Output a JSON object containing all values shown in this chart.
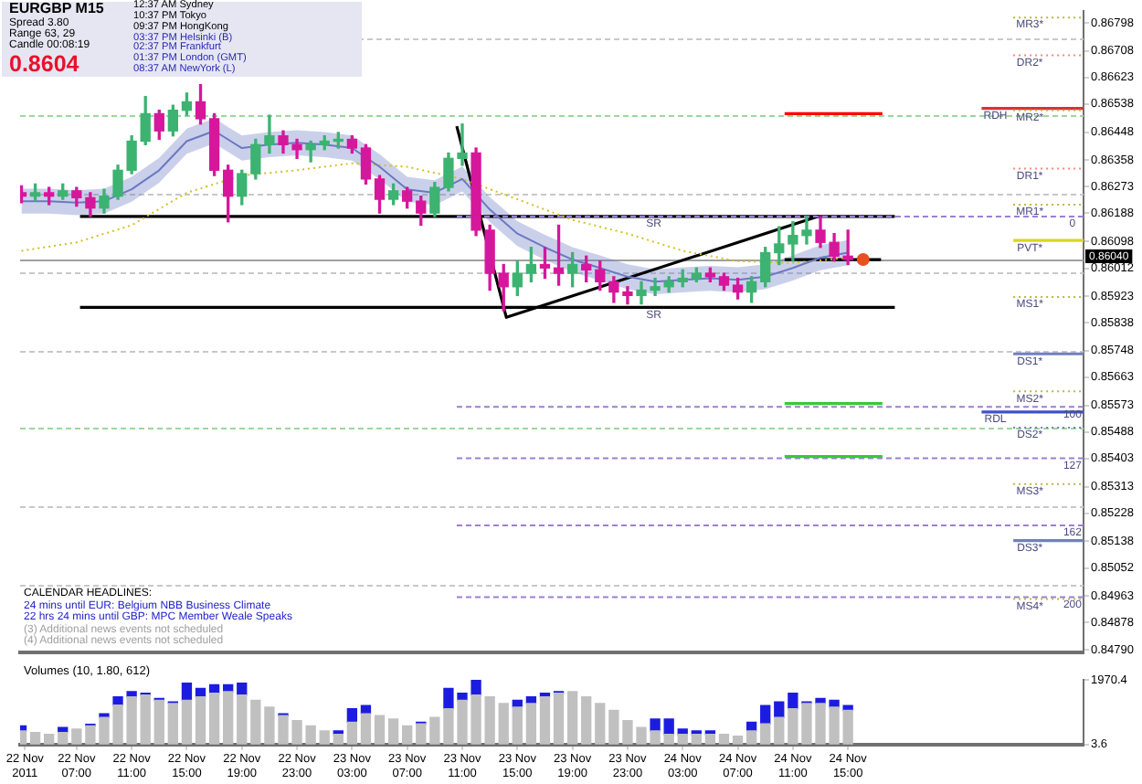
{
  "chart_data": [
    {
      "type": "candlestick",
      "title": "EURGBP M15",
      "x": [
        "2011-11-22T03:00",
        "2011-11-22T04:00",
        "2011-11-22T05:00",
        "2011-11-22T06:00",
        "2011-11-22T07:00",
        "2011-11-22T08:00",
        "2011-11-22T09:00",
        "2011-11-22T10:00",
        "2011-11-22T11:00",
        "2011-11-22T12:00",
        "2011-11-22T13:00",
        "2011-11-22T14:00",
        "2011-11-22T15:00",
        "2011-11-22T16:00",
        "2011-11-22T17:00",
        "2011-11-22T18:00",
        "2011-11-22T19:00",
        "2011-11-22T20:00",
        "2011-11-22T21:00",
        "2011-11-22T22:00",
        "2011-11-22T23:00",
        "2011-11-23T00:00",
        "2011-11-23T01:00",
        "2011-11-23T02:00",
        "2011-11-23T03:00",
        "2011-11-23T04:00",
        "2011-11-23T05:00",
        "2011-11-23T06:00",
        "2011-11-23T07:00",
        "2011-11-23T08:00",
        "2011-11-23T09:00",
        "2011-11-23T10:00",
        "2011-11-23T11:00",
        "2011-11-23T12:00",
        "2011-11-23T13:00",
        "2011-11-23T14:00",
        "2011-11-23T15:00",
        "2011-11-23T16:00",
        "2011-11-23T17:00",
        "2011-11-23T18:00",
        "2011-11-23T19:00",
        "2011-11-23T20:00",
        "2011-11-23T21:00",
        "2011-11-23T22:00",
        "2011-11-23T23:00",
        "2011-11-24T00:00",
        "2011-11-24T01:00",
        "2011-11-24T02:00",
        "2011-11-24T03:00",
        "2011-11-24T04:00",
        "2011-11-24T05:00",
        "2011-11-24T06:00",
        "2011-11-24T07:00",
        "2011-11-24T08:00",
        "2011-11-24T09:00",
        "2011-11-24T10:00",
        "2011-11-24T11:00",
        "2011-11-24T12:00",
        "2011-11-24T13:00",
        "2011-11-24T14:00",
        "2011-11-24T15:00"
      ],
      "ohlc": [
        [
          0.86254,
          0.86276,
          0.86222,
          0.86243
        ],
        [
          0.86243,
          0.86282,
          0.86227,
          0.86254
        ],
        [
          0.86254,
          0.86271,
          0.86216,
          0.86243
        ],
        [
          0.86243,
          0.86282,
          0.86233,
          0.8626
        ],
        [
          0.8626,
          0.86271,
          0.86211,
          0.86238
        ],
        [
          0.86238,
          0.86254,
          0.86178,
          0.86205
        ],
        [
          0.86205,
          0.86265,
          0.86189,
          0.86243
        ],
        [
          0.86243,
          0.86342,
          0.86233,
          0.86326
        ],
        [
          0.86326,
          0.86436,
          0.86315,
          0.86419
        ],
        [
          0.86419,
          0.86562,
          0.86408,
          0.86507
        ],
        [
          0.86507,
          0.86518,
          0.86425,
          0.86452
        ],
        [
          0.86452,
          0.86534,
          0.86436,
          0.86518
        ],
        [
          0.86518,
          0.86573,
          0.86502,
          0.86545
        ],
        [
          0.86545,
          0.866,
          0.86474,
          0.86491
        ],
        [
          0.86491,
          0.86507,
          0.86309,
          0.86326
        ],
        [
          0.86326,
          0.86342,
          0.86161,
          0.86243
        ],
        [
          0.86243,
          0.86326,
          0.86216,
          0.86315
        ],
        [
          0.86315,
          0.86425,
          0.86298,
          0.86408
        ],
        [
          0.86408,
          0.86502,
          0.86381,
          0.86436
        ],
        [
          0.86436,
          0.86452,
          0.86381,
          0.86408
        ],
        [
          0.86408,
          0.86425,
          0.86364,
          0.86392
        ],
        [
          0.86392,
          0.86419,
          0.86353,
          0.86408
        ],
        [
          0.86408,
          0.86436,
          0.86392,
          0.86419
        ],
        [
          0.86419,
          0.86447,
          0.86397,
          0.86425
        ],
        [
          0.86425,
          0.86436,
          0.86381,
          0.86397
        ],
        [
          0.86397,
          0.86408,
          0.86282,
          0.86298
        ],
        [
          0.86298,
          0.86309,
          0.86189,
          0.86233
        ],
        [
          0.86233,
          0.86282,
          0.86216,
          0.8626
        ],
        [
          0.8626,
          0.86271,
          0.86205,
          0.86227
        ],
        [
          0.86227,
          0.86243,
          0.8615,
          0.86189
        ],
        [
          0.86189,
          0.86287,
          0.86178,
          0.86271
        ],
        [
          0.86271,
          0.86381,
          0.8626,
          0.86364
        ],
        [
          0.86364,
          0.86474,
          0.86342,
          0.86381
        ],
        [
          0.86381,
          0.86397,
          0.86117,
          0.86134
        ],
        [
          0.86134,
          0.8615,
          0.85942,
          0.85996
        ],
        [
          0.85996,
          0.86024,
          0.85876,
          0.85953
        ],
        [
          0.85953,
          0.86035,
          0.85925,
          0.85996
        ],
        [
          0.85996,
          0.86079,
          0.85969,
          0.86024
        ],
        [
          0.86024,
          0.86079,
          0.8598,
          0.86013
        ],
        [
          0.86013,
          0.8615,
          0.85958,
          0.85996
        ],
        [
          0.85996,
          0.86062,
          0.85953,
          0.86024
        ],
        [
          0.86024,
          0.86051,
          0.85969,
          0.86007
        ],
        [
          0.86007,
          0.86035,
          0.85942,
          0.85969
        ],
        [
          0.85969,
          0.85985,
          0.85903,
          0.85936
        ],
        [
          0.85936,
          0.85953,
          0.85898,
          0.85925
        ],
        [
          0.85925,
          0.85969,
          0.85898,
          0.85942
        ],
        [
          0.85942,
          0.8598,
          0.85925,
          0.85953
        ],
        [
          0.85953,
          0.85985,
          0.85936,
          0.85969
        ],
        [
          0.85969,
          0.86007,
          0.85953,
          0.8598
        ],
        [
          0.8598,
          0.86013,
          0.85969,
          0.85996
        ],
        [
          0.85996,
          0.86013,
          0.85969,
          0.85985
        ],
        [
          0.85985,
          0.85996,
          0.85942,
          0.85958
        ],
        [
          0.85958,
          0.8598,
          0.85914,
          0.85936
        ],
        [
          0.85936,
          0.85985,
          0.85903,
          0.85969
        ],
        [
          0.85969,
          0.86079,
          0.85953,
          0.86062
        ],
        [
          0.86062,
          0.86145,
          0.86024,
          0.8609
        ],
        [
          0.8609,
          0.86161,
          0.86035,
          0.86117
        ],
        [
          0.86117,
          0.86178,
          0.8609,
          0.86134
        ],
        [
          0.86134,
          0.86178,
          0.86079,
          0.86095
        ],
        [
          0.86095,
          0.86123,
          0.86035,
          0.86051
        ],
        [
          0.86051,
          0.86134,
          0.86024,
          0.8604
        ]
      ],
      "colors": [
        "#d6179c",
        "#3cb371",
        "#d6179c",
        "#3cb371",
        "#d6179c",
        "#d6179c",
        "#3cb371",
        "#3cb371",
        "#3cb371",
        "#3cb371",
        "#d6179c",
        "#3cb371",
        "#3cb371",
        "#d6179c",
        "#d6179c",
        "#d6179c",
        "#3cb371",
        "#3cb371",
        "#3cb371",
        "#d6179c",
        "#d6179c",
        "#3cb371",
        "#3cb371",
        "#3cb371",
        "#d6179c",
        "#d6179c",
        "#d6179c",
        "#3cb371",
        "#d6179c",
        "#d6179c",
        "#3cb371",
        "#3cb371",
        "#3cb371",
        "#d6179c",
        "#d6179c",
        "#d6179c",
        "#3cb371",
        "#3cb371",
        "#d6179c",
        "#d6179c",
        "#3cb371",
        "#d6179c",
        "#d6179c",
        "#d6179c",
        "#d6179c",
        "#3cb371",
        "#3cb371",
        "#3cb371",
        "#3cb371",
        "#3cb371",
        "#d6179c",
        "#d6179c",
        "#d6179c",
        "#3cb371",
        "#3cb371",
        "#3cb371",
        "#3cb371",
        "#3cb371",
        "#d6179c",
        "#d6179c",
        "#d6179c"
      ],
      "series": [
        {
          "type": "line",
          "color": "#6b78c4",
          "x": [
            "2011-11-22T03:00",
            "2011-11-22T05:00",
            "2011-11-22T07:00",
            "2011-11-22T09:00",
            "2011-11-22T11:00",
            "2011-11-22T13:00",
            "2011-11-22T15:00",
            "2011-11-22T17:00",
            "2011-11-22T19:00",
            "2011-11-22T21:00",
            "2011-11-22T23:00",
            "2011-11-23T01:00",
            "2011-11-23T03:00",
            "2011-11-23T05:00",
            "2011-11-23T07:00",
            "2011-11-23T09:00",
            "2011-11-23T11:00",
            "2011-11-23T13:00",
            "2011-11-23T15:00",
            "2011-11-23T17:00",
            "2011-11-23T19:00",
            "2011-11-23T21:00",
            "2011-11-23T23:00",
            "2011-11-24T01:00",
            "2011-11-24T03:00",
            "2011-11-24T05:00",
            "2011-11-24T07:00",
            "2011-11-24T09:00",
            "2011-11-24T11:00",
            "2011-11-24T13:00",
            "2011-11-24T15:00"
          ],
          "values": [
            0.86227,
            0.86227,
            0.86222,
            0.86227,
            0.86265,
            0.86326,
            0.86419,
            0.86452,
            0.86397,
            0.86408,
            0.86414,
            0.86408,
            0.86397,
            0.86337,
            0.86265,
            0.86254,
            0.86298,
            0.862,
            0.86123,
            0.86079,
            0.8604,
            0.86013,
            0.85985,
            0.85969,
            0.85975,
            0.8598,
            0.85975,
            0.85985,
            0.86013,
            0.86046,
            0.86062
          ],
          "lower": [
            0.86187,
            0.86187,
            0.86182,
            0.86187,
            0.86225,
            0.86286,
            0.86379,
            0.86412,
            0.86357,
            0.86368,
            0.86374,
            0.86368,
            0.86357,
            0.86297,
            0.86225,
            0.86214,
            0.86258,
            0.8616,
            0.86083,
            0.86039,
            0.86,
            0.85973,
            0.85945,
            0.85929,
            0.85935,
            0.8594,
            0.85935,
            0.85945,
            0.85973,
            0.86006,
            0.86022
          ],
          "upper": [
            0.86267,
            0.86267,
            0.86262,
            0.86267,
            0.86305,
            0.86366,
            0.86459,
            0.86492,
            0.86437,
            0.86448,
            0.86454,
            0.86448,
            0.86437,
            0.86377,
            0.86305,
            0.86294,
            0.86338,
            0.8624,
            0.86163,
            0.86119,
            0.8608,
            0.86053,
            0.86025,
            0.86009,
            0.86015,
            0.8602,
            0.86015,
            0.86025,
            0.86053,
            0.86086,
            0.86102
          ]
        },
        {
          "type": "line",
          "color": "#d4c020",
          "line_style": "dotted",
          "x": [
            "2011-11-22T03:00",
            "2011-11-22T07:00",
            "2011-11-22T11:00",
            "2011-11-22T15:00",
            "2011-11-22T19:00",
            "2011-11-22T23:00",
            "2011-11-23T03:00",
            "2011-11-23T07:00",
            "2011-11-23T11:00",
            "2011-11-23T15:00",
            "2011-11-23T19:00",
            "2011-11-23T23:00",
            "2011-11-24T03:00",
            "2011-11-24T07:00",
            "2011-11-24T11:00",
            "2011-11-24T15:00"
          ],
          "values": [
            0.86068,
            0.86095,
            0.8615,
            0.86254,
            0.86309,
            0.86326,
            0.86348,
            0.86337,
            0.86298,
            0.86233,
            0.86167,
            0.86123,
            0.86068,
            0.86035,
            0.86029,
            0.86046
          ]
        },
        {
          "type": "line",
          "color": "#9b7fd4",
          "line_style": "dashed",
          "x": [
            "2011-11-23T10:36",
            "2011-11-25T08:06"
          ],
          "values": [
            0.86178,
            0.86178
          ]
        },
        {
          "type": "line",
          "color": "#9b7fd4",
          "line_style": "dashed",
          "x": [
            "2011-11-23T10:36",
            "2011-11-25T08:06"
          ],
          "values": [
            0.85568,
            0.85568
          ]
        },
        {
          "type": "line",
          "color": "#9b7fd4",
          "line_style": "dashed",
          "x": [
            "2011-11-23T10:36",
            "2011-11-25T08:06"
          ],
          "values": [
            0.85404,
            0.85404
          ]
        },
        {
          "type": "line",
          "color": "#9b7fd4",
          "line_style": "dashed",
          "x": [
            "2011-11-23T10:36",
            "2011-11-25T08:06"
          ],
          "values": [
            0.85189,
            0.85189
          ]
        },
        {
          "type": "line",
          "color": "#9b7fd4",
          "line_style": "dashed",
          "x": [
            "2011-11-23T10:36",
            "2011-11-25T08:06"
          ],
          "values": [
            0.84959,
            0.84959
          ]
        },
        {
          "type": "line",
          "color": "#000000",
          "x": [
            "2011-11-23T10:36",
            "2011-11-23T14:12",
            "2011-11-24T12:54"
          ],
          "values": [
            0.86467,
            0.85855,
            0.86179
          ]
        },
        {
          "type": "line",
          "color": "#000000",
          "x": [
            "2011-11-22T07:15",
            "2011-11-24T18:24"
          ],
          "values": [
            0.86178,
            0.86178
          ]
        },
        {
          "type": "line",
          "color": "#000000",
          "x": [
            "2011-11-22T07:15",
            "2011-11-24T18:24"
          ],
          "values": [
            0.85887,
            0.85887
          ]
        },
        {
          "type": "line",
          "color": "#000000",
          "x": [
            "2011-11-24T10:24",
            "2011-11-24T17:24"
          ],
          "values": [
            0.8604,
            0.8604
          ]
        },
        {
          "type": "line",
          "color": "#ff0000",
          "x": [
            "2011-11-24T10:24",
            "2011-11-24T17:30"
          ],
          "values": [
            0.86507,
            0.86507
          ]
        },
        {
          "type": "line",
          "color": "#33cc33",
          "x": [
            "2011-11-24T10:24",
            "2011-11-24T17:30"
          ],
          "values": [
            0.85579,
            0.85579
          ]
        },
        {
          "type": "line",
          "color": "#33cc33",
          "x": [
            "2011-11-24T10:24",
            "2011-11-24T17:30"
          ],
          "values": [
            0.85409,
            0.85409
          ]
        },
        {
          "type": "line",
          "color": "#b8b840",
          "line_style": "dotted",
          "x": [
            "2011-11-25T03:00",
            "2011-11-25T08:06"
          ],
          "values": [
            0.86815,
            0.86815
          ]
        },
        {
          "type": "line",
          "color": "#f08878",
          "line_style": "dotted",
          "x": [
            "2011-11-25T03:00",
            "2011-11-25T08:06"
          ],
          "values": [
            0.86694,
            0.86694
          ]
        },
        {
          "type": "line",
          "color": "#b8b840",
          "line_style": "dotted",
          "x": [
            "2011-11-25T03:00",
            "2011-11-25T08:06"
          ],
          "values": [
            0.86518,
            0.86518
          ]
        },
        {
          "type": "line",
          "color": "#f08878",
          "line_style": "dotted",
          "x": [
            "2011-11-25T03:00",
            "2011-11-25T08:06"
          ],
          "values": [
            0.86331,
            0.86331
          ]
        },
        {
          "type": "line",
          "color": "#b8b840",
          "line_style": "dotted",
          "x": [
            "2011-11-25T03:00",
            "2011-11-25T08:06"
          ],
          "values": [
            0.86216,
            0.86216
          ]
        },
        {
          "type": "line",
          "color": "#d8d820",
          "x": [
            "2011-11-25T03:00",
            "2011-11-25T08:06"
          ],
          "values": [
            0.86101,
            0.86101
          ]
        },
        {
          "type": "line",
          "color": "#b8b840",
          "line_style": "dotted",
          "x": [
            "2011-11-25T03:00",
            "2011-11-25T08:06"
          ],
          "values": [
            0.8592,
            0.8592
          ]
        },
        {
          "type": "line",
          "color": "#7080c0",
          "x": [
            "2011-11-25T03:00",
            "2011-11-25T08:06"
          ],
          "values": [
            0.85738,
            0.85738
          ]
        },
        {
          "type": "line",
          "color": "#b8b840",
          "line_style": "dotted",
          "x": [
            "2011-11-25T03:00",
            "2011-11-25T08:06"
          ],
          "values": [
            0.85618,
            0.85618
          ]
        },
        {
          "type": "line",
          "color": "#7080c0",
          "line_style": "dotted",
          "x": [
            "2011-11-25T03:00",
            "2011-11-25T08:06"
          ],
          "values": [
            0.85502,
            0.85502
          ]
        },
        {
          "type": "line",
          "color": "#b8b840",
          "line_style": "dotted",
          "x": [
            "2011-11-25T03:00",
            "2011-11-25T08:06"
          ],
          "values": [
            0.85321,
            0.85321
          ]
        },
        {
          "type": "line",
          "color": "#7080c0",
          "x": [
            "2011-11-25T03:00",
            "2011-11-25T08:06"
          ],
          "values": [
            0.8514,
            0.8514
          ]
        },
        {
          "type": "line",
          "color": "#b8b840",
          "line_style": "dotted",
          "x": [
            "2011-11-25T03:00",
            "2011-11-25T08:06"
          ],
          "values": [
            0.84953,
            0.84953
          ]
        },
        {
          "type": "line",
          "color": "#e03030",
          "x": [
            "2011-11-25T00:42",
            "2011-11-25T08:06"
          ],
          "values": [
            0.86524,
            0.86524
          ]
        },
        {
          "type": "line",
          "color": "#4050c8",
          "x": [
            "2011-11-25T00:42",
            "2011-11-25T08:06"
          ],
          "values": [
            0.85552,
            0.85552
          ]
        },
        {
          "type": "scatter",
          "color": "#e85020",
          "marker": "circle",
          "x": [
            "2011-11-24T16:06"
          ],
          "values": [
            0.8604
          ]
        }
      ],
      "ref_lines": [
        {
          "axis": "y",
          "value": 0.8675,
          "color": "#c8c8c8",
          "line_style": "dashed"
        },
        {
          "axis": "y",
          "value": 0.865,
          "color": "#9ad89a",
          "line_style": "dashed"
        },
        {
          "axis": "y",
          "value": 0.8625,
          "color": "#c8c8c8",
          "line_style": "dashed"
        },
        {
          "axis": "y",
          "value": 0.86,
          "color": "#c8c8c8",
          "line_style": "dashed"
        },
        {
          "axis": "y",
          "value": 0.8575,
          "color": "#c8c8c8",
          "line_style": "dashed"
        },
        {
          "axis": "y",
          "value": 0.855,
          "color": "#9ad89a",
          "line_style": "dashed"
        },
        {
          "axis": "y",
          "value": 0.8525,
          "color": "#c8c8c8",
          "line_style": "dashed"
        },
        {
          "axis": "y",
          "value": 0.85,
          "color": "#c8c8c8",
          "line_style": "dashed"
        },
        {
          "axis": "y",
          "value": 0.8604,
          "label": "0.86040",
          "color": "#a0a0a0"
        }
      ],
      "annotations": [
        {
          "text": "MR3*",
          "x": "2011-11-25T04:12",
          "y": 0.86815
        },
        {
          "text": "DR2*",
          "x": "2011-11-25T04:12",
          "y": 0.86694
        },
        {
          "text": "RDH",
          "x": "2011-11-25T01:42",
          "y": 0.86524
        },
        {
          "text": "MR2*",
          "x": "2011-11-25T04:12",
          "y": 0.86518
        },
        {
          "text": "DR1*",
          "x": "2011-11-25T04:12",
          "y": 0.86331
        },
        {
          "text": "MR1*",
          "x": "2011-11-25T04:12",
          "y": 0.86216
        },
        {
          "text": "PVT*",
          "x": "2011-11-25T04:12",
          "y": 0.86101
        },
        {
          "text": "MS1*",
          "x": "2011-11-25T04:12",
          "y": 0.8592
        },
        {
          "text": "DS1*",
          "x": "2011-11-25T04:12",
          "y": 0.85738
        },
        {
          "text": "MS2*",
          "x": "2011-11-25T04:12",
          "y": 0.85618
        },
        {
          "text": "RDL",
          "x": "2011-11-25T01:42",
          "y": 0.85552
        },
        {
          "text": "DS2*",
          "x": "2011-11-25T04:12",
          "y": 0.85502
        },
        {
          "text": "MS3*",
          "x": "2011-11-25T04:12",
          "y": 0.85321
        },
        {
          "text": "DS3*",
          "x": "2011-11-25T04:12",
          "y": 0.8514
        },
        {
          "text": "MS4*",
          "x": "2011-11-25T04:12",
          "y": 0.84953
        },
        {
          "text": "0",
          "x": "2011-11-25T07:18",
          "y": 0.86178
        },
        {
          "text": "100",
          "x": "2011-11-25T07:18",
          "y": 0.85568
        },
        {
          "text": "127",
          "x": "2011-11-25T07:18",
          "y": 0.85404
        },
        {
          "text": "162",
          "x": "2011-11-25T07:18",
          "y": 0.85189
        },
        {
          "text": "200",
          "x": "2011-11-25T07:18",
          "y": 0.84959
        },
        {
          "text": "SR",
          "x": "2011-11-24T00:54",
          "y": 0.86178
        },
        {
          "text": "SR",
          "x": "2011-11-24T00:54",
          "y": 0.85887
        },
        "Spread 3.80",
        "Range 63, 29",
        "Candle 00:08:19",
        "0.8604",
        "12:37 AM Sydney",
        "10:37 PM Tokyo",
        "09:37 PM HongKong",
        "03:37 PM Helsinki (B)",
        "02:37 PM Frankfurt",
        "01:37 PM London (GMT)",
        "08:37 AM NewYork (L)",
        "CALENDAR HEADLINES:",
        "24 mins until EUR: Belgium NBB Business Climate",
        "22 hrs 24 mins until GBP: MPC Member Weale Speaks",
        "(3) Additional news events not scheduled",
        "(4) Additional news events not scheduled"
      ],
      "xlim": [
        "2011-11-22T02:54",
        "2011-11-25T08:06"
      ],
      "ylim": [
        0.84782,
        0.86836
      ],
      "yticks": [
        0.86798,
        0.86708,
        0.86623,
        0.86538,
        0.86448,
        0.86358,
        0.86273,
        0.86188,
        0.86098,
        0.86012,
        0.85923,
        0.85838,
        0.85748,
        0.85663,
        0.85573,
        0.85488,
        0.85403,
        0.85313,
        0.85228,
        0.85138,
        0.85052,
        0.84963,
        0.84878,
        {
          "value": 0.8479,
          "label": "0.84790"
        }
      ],
      "tick_labels": "y"
    },
    {
      "type": "bar",
      "title": "Volumes (10, 1.80, 612)",
      "stacked": true,
      "x": [
        "2011-11-22T03:00",
        "2011-11-22T04:00",
        "2011-11-22T05:00",
        "2011-11-22T06:00",
        "2011-11-22T07:00",
        "2011-11-22T08:00",
        "2011-11-22T09:00",
        "2011-11-22T10:00",
        "2011-11-22T11:00",
        "2011-11-22T12:00",
        "2011-11-22T13:00",
        "2011-11-22T14:00",
        "2011-11-22T15:00",
        "2011-11-22T16:00",
        "2011-11-22T17:00",
        "2011-11-22T18:00",
        "2011-11-22T19:00",
        "2011-11-22T20:00",
        "2011-11-22T21:00",
        "2011-11-22T22:00",
        "2011-11-22T23:00",
        "2011-11-23T00:00",
        "2011-11-23T01:00",
        "2011-11-23T02:00",
        "2011-11-23T03:00",
        "2011-11-23T04:00",
        "2011-11-23T05:00",
        "2011-11-23T06:00",
        "2011-11-23T07:00",
        "2011-11-23T08:00",
        "2011-11-23T09:00",
        "2011-11-23T10:00",
        "2011-11-23T11:00",
        "2011-11-23T12:00",
        "2011-11-23T13:00",
        "2011-11-23T14:00",
        "2011-11-23T15:00",
        "2011-11-23T16:00",
        "2011-11-23T17:00",
        "2011-11-23T18:00",
        "2011-11-23T19:00",
        "2011-11-23T20:00",
        "2011-11-23T21:00",
        "2011-11-23T22:00",
        "2011-11-23T23:00",
        "2011-11-24T00:00",
        "2011-11-24T01:00",
        "2011-11-24T02:00",
        "2011-11-24T03:00",
        "2011-11-24T04:00",
        "2011-11-24T05:00",
        "2011-11-24T06:00",
        "2011-11-24T07:00",
        "2011-11-24T08:00",
        "2011-11-24T09:00",
        "2011-11-24T10:00",
        "2011-11-24T11:00",
        "2011-11-24T12:00",
        "2011-11-24T13:00",
        "2011-11-24T14:00",
        "2011-11-24T15:00"
      ],
      "series": [
        {
          "color": "#c0c0c0",
          "values": [
            420,
            370,
            310,
            370,
            470,
            570,
            830,
            1200,
            1450,
            1510,
            1350,
            1250,
            1350,
            1450,
            1560,
            1610,
            1510,
            1350,
            1140,
            880,
            730,
            570,
            420,
            310,
            680,
            940,
            880,
            780,
            570,
            630,
            830,
            1090,
            1350,
            1510,
            1450,
            1250,
            1140,
            1250,
            1450,
            1560,
            1610,
            1450,
            1250,
            1040,
            730,
            520,
            420,
            310,
            310,
            310,
            310,
            310,
            260,
            420,
            630,
            830,
            1090,
            1250,
            1250,
            1140,
            1040
          ]
        },
        {
          "color": "#1c1ce0",
          "values": [
            150,
            null,
            null,
            150,
            null,
            50,
            110,
            250,
            160,
            50,
            50,
            50,
            520,
            260,
            260,
            210,
            360,
            null,
            null,
            60,
            null,
            null,
            null,
            110,
            410,
            250,
            null,
            null,
            null,
            50,
            null,
            620,
            210,
            460,
            null,
            null,
            210,
            200,
            110,
            50,
            null,
            null,
            null,
            null,
            null,
            null,
            360,
            470,
            160,
            110,
            110,
            null,
            null,
            260,
            560,
            470,
            470,
            50,
            150,
            210,
            150
          ]
        }
      ],
      "xlim": [
        "2011-11-22T02:54",
        "2011-11-25T08:06"
      ],
      "xticks": [
        {
          "value": "2011-11-22T03:15",
          "label": "22 Nov 2011"
        },
        {
          "value": "2011-11-22T07:00",
          "label": "22 Nov 07:00"
        },
        {
          "value": "2011-11-22T11:00",
          "label": "22 Nov 11:00"
        },
        {
          "value": "2011-11-22T15:00",
          "label": "22 Nov 15:00"
        },
        {
          "value": "2011-11-22T19:00",
          "label": "22 Nov 19:00"
        },
        {
          "value": "2011-11-22T23:00",
          "label": "22 Nov 23:00"
        },
        {
          "value": "2011-11-23T03:00",
          "label": "23 Nov 03:00"
        },
        {
          "value": "2011-11-23T07:00",
          "label": "23 Nov 07:00"
        },
        {
          "value": "2011-11-23T11:00",
          "label": "23 Nov 11:00"
        },
        {
          "value": "2011-11-23T15:00",
          "label": "23 Nov 15:00"
        },
        {
          "value": "2011-11-23T19:00",
          "label": "23 Nov 19:00"
        },
        {
          "value": "2011-11-23T23:00",
          "label": "23 Nov 23:00"
        },
        {
          "value": "2011-11-24T03:00",
          "label": "24 Nov 03:00"
        },
        {
          "value": "2011-11-24T07:00",
          "label": "24 Nov 07:00"
        },
        {
          "value": "2011-11-24T11:00",
          "label": "24 Nov 11:00"
        },
        {
          "value": "2011-11-24T15:00",
          "label": "24 Nov 15:00"
        }
      ],
      "ylim": [
        3.6,
        1970.4
      ],
      "yticks": [
        1970.4,
        3.6
      ]
    }
  ]
}
